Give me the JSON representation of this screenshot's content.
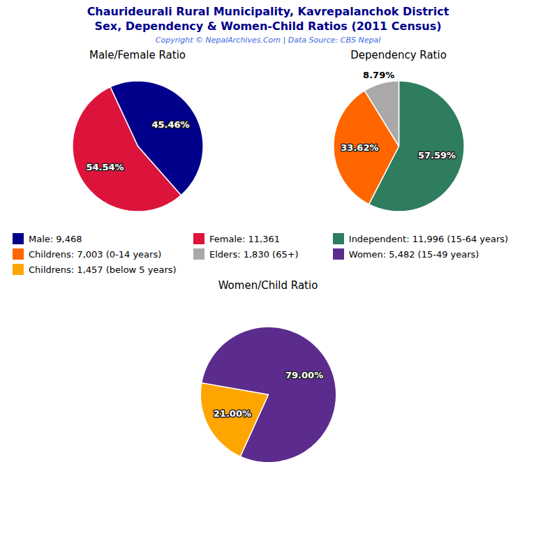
{
  "title": "Chaurideurali Rural Municipality, Kavrepalanchok District",
  "subtitle": "Sex, Dependency & Women-Child Ratios (2011 Census)",
  "caption": "Copyright © NepalArchives.Com | Data Source: CBS Nepal",
  "chart_data": [
    {
      "type": "pie",
      "title": "Male/Female Ratio",
      "categories": [
        "Male: 9,468",
        "Female: 11,361"
      ],
      "values": [
        45.46,
        54.54
      ],
      "value_labels": [
        "45.46%",
        "54.54%"
      ],
      "colors": [
        "#00008B",
        "#DC143C"
      ],
      "data_labels": true,
      "legend": "bottom"
    },
    {
      "type": "pie",
      "title": "Dependency Ratio",
      "categories": [
        "Independent: 11,996 (15-64 years)",
        "Childrens: 7,003 (0-14 years)",
        "Elders: 1,830 (65+)"
      ],
      "values": [
        57.59,
        33.62,
        8.79
      ],
      "value_labels": [
        "57.59%",
        "33.62%",
        "8.79%"
      ],
      "colors": [
        "#2E7D5E",
        "#FF6600",
        "#A9A9A9"
      ],
      "data_labels": true,
      "legend": "bottom"
    },
    {
      "type": "pie",
      "title": "Women/Child Ratio",
      "categories": [
        "Women: 5,482 (15-49 years)",
        "Childrens: 1,457 (below 5 years)"
      ],
      "values": [
        79.0,
        21.0
      ],
      "value_labels": [
        "79.00%",
        "21.00%"
      ],
      "colors": [
        "#5B2C8D",
        "#FFA500"
      ],
      "data_labels": true,
      "legend": "top"
    }
  ]
}
